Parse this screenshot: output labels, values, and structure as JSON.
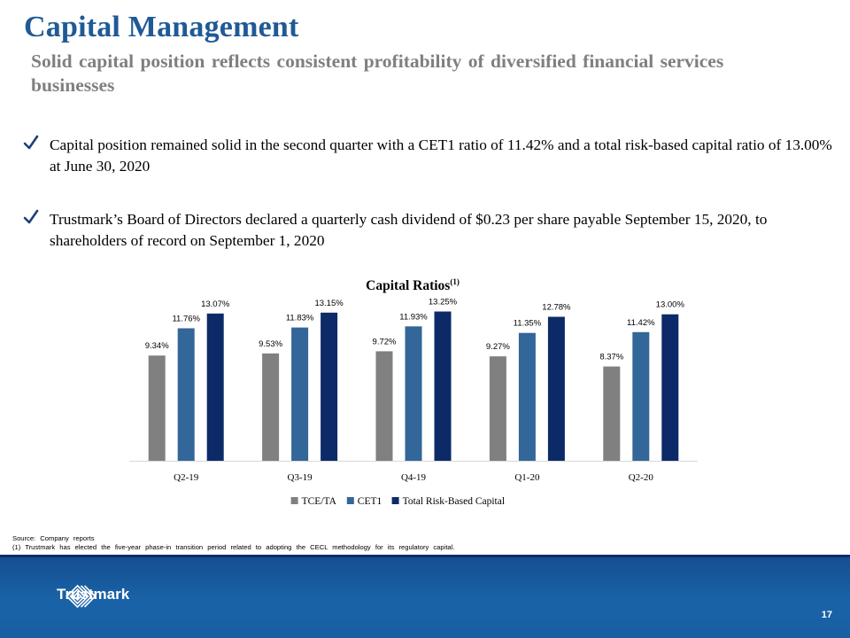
{
  "header": {
    "title": "Capital Management",
    "subtitle": "Solid capital position reflects consistent profitability of diversified financial services businesses"
  },
  "bullets": [
    {
      "icon": "check-icon",
      "text": "Capital position remained solid in the second quarter with a CET1 ratio of 11.42% and a total risk-based capital ratio of 13.00% at June 30, 2020"
    },
    {
      "icon": "check-icon",
      "text": "Trustmark’s Board of Directors declared a quarterly cash dividend of $0.23 per share payable September 15, 2020, to shareholders of record on September 1, 2020"
    }
  ],
  "chart_data": {
    "type": "bar",
    "title": "Capital Ratios",
    "title_superscript": "(1)",
    "categories": [
      "Q2-19",
      "Q3-19",
      "Q4-19",
      "Q1-20",
      "Q2-20"
    ],
    "series": [
      {
        "name": "TCE/TA",
        "color": "#808080",
        "values": [
          9.34,
          9.53,
          9.72,
          9.27,
          8.37
        ],
        "labels": [
          "9.34%",
          "9.53%",
          "9.72%",
          "9.27%",
          "8.37%"
        ]
      },
      {
        "name": "CET1",
        "color": "#336699",
        "values": [
          11.76,
          11.83,
          11.93,
          11.35,
          11.42
        ],
        "labels": [
          "11.76%",
          "11.83%",
          "11.93%",
          "11.35%",
          "11.42%"
        ]
      },
      {
        "name": "Total Risk-Based Capital",
        "color": "#0d2a68",
        "values": [
          13.07,
          13.15,
          13.25,
          12.78,
          13.0
        ],
        "labels": [
          "13.07%",
          "13.15%",
          "13.25%",
          "12.78%",
          "13.00%"
        ]
      }
    ],
    "ylim": [
      0,
      14
    ],
    "grid": false,
    "legend": "bottom"
  },
  "footer": {
    "source": "Source: Company reports",
    "note": "(1) Trustmark has elected the five-year phase-in transition period related to adopting the CECL methodology for its regulatory capital."
  },
  "brand": {
    "name": "Trustmark",
    "logo_icon": "trustmark-logo-icon",
    "band_color": "#1a5ea2"
  },
  "page_number": "17"
}
